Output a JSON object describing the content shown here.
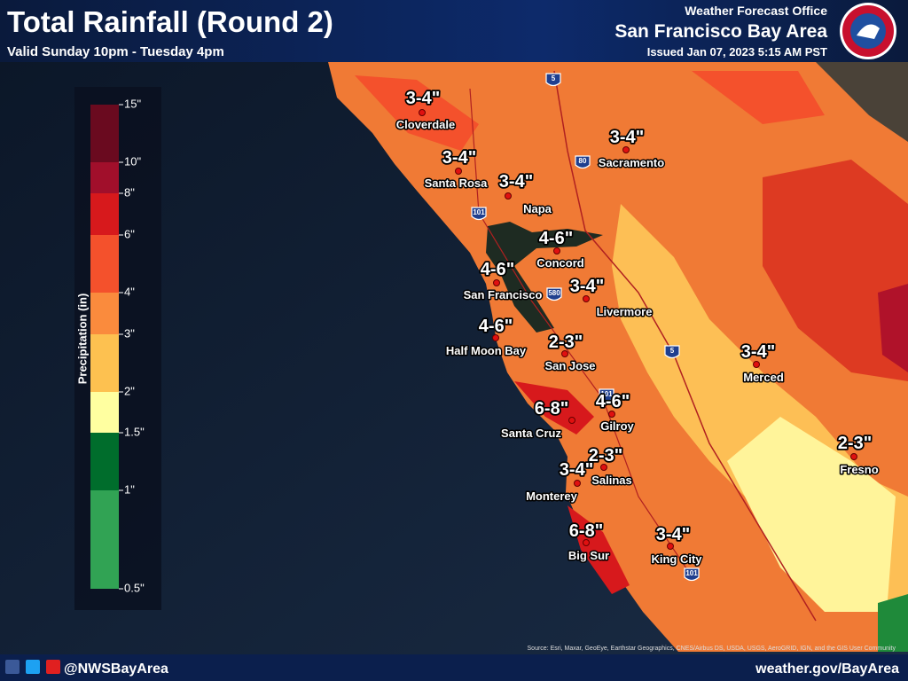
{
  "header": {
    "title": "Total Rainfall (Round 2)",
    "subtitle": "Valid Sunday 10pm - Tuesday 4pm",
    "office_label": "Weather Forecast Office",
    "office": "San Francisco Bay Area",
    "issued": "Issued Jan 07, 2023 5:15 AM PST"
  },
  "legend": {
    "title": "Precipitation (in)",
    "labels": [
      "15\"",
      "10\"",
      "8\"",
      "6\"",
      "4\"",
      "3\"",
      "2\"",
      "1.5\"",
      "1\"",
      "0.5\""
    ],
    "colors": [
      "#6a0a1f",
      "#a10f2b",
      "#d7191c",
      "#f4512c",
      "#fa8b3d",
      "#fdc150",
      "#ffffa0",
      "#006d2c",
      "#31a354"
    ]
  },
  "cities": [
    {
      "name": "Cloverdale",
      "amount": "3-4\""
    },
    {
      "name": "Santa Rosa",
      "amount": "3-4\""
    },
    {
      "name": "Napa",
      "amount": "3-4\""
    },
    {
      "name": "Sacramento",
      "amount": "3-4\""
    },
    {
      "name": "Concord",
      "amount": "4-6\""
    },
    {
      "name": "San Francisco",
      "amount": "4-6\""
    },
    {
      "name": "Livermore",
      "amount": "3-4\""
    },
    {
      "name": "Half Moon Bay",
      "amount": "4-6\""
    },
    {
      "name": "San Jose",
      "amount": "2-3\""
    },
    {
      "name": "Merced",
      "amount": "3-4\""
    },
    {
      "name": "Gilroy",
      "amount": "4-6\""
    },
    {
      "name": "Santa Cruz",
      "amount": "6-8\""
    },
    {
      "name": "Fresno",
      "amount": "2-3\""
    },
    {
      "name": "Salinas",
      "amount": "2-3\""
    },
    {
      "name": "Monterey",
      "amount": "3-4\""
    },
    {
      "name": "Big Sur",
      "amount": "6-8\""
    },
    {
      "name": "King City",
      "amount": "3-4\""
    }
  ],
  "highways": [
    "5",
    "80",
    "101",
    "580",
    "5",
    "101",
    "101"
  ],
  "footer": {
    "handle": "@NWSBayArea",
    "url": "weather.gov/BayArea",
    "credit": "Source: Esri, Maxar, GeoEye, Earthstar Geographics, CNES/Airbus DS, USDA, USGS, AeroGRID, IGN, and the GIS User Community"
  }
}
